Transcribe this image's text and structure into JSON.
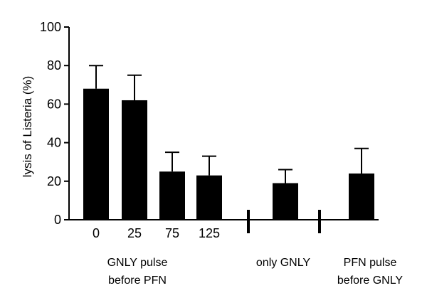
{
  "chart_data": {
    "type": "bar",
    "title": "",
    "ylabel": "lysis of Listeria (%)",
    "xlabel": "",
    "ylim": [
      0,
      100
    ],
    "yticks": [
      0,
      20,
      40,
      60,
      80,
      100
    ],
    "grid": false,
    "bar_color": "#000000",
    "categories": [
      "0",
      "25",
      "75",
      "125",
      "",
      ""
    ],
    "values": [
      68,
      62,
      25,
      23,
      19,
      24
    ],
    "error_upper": [
      80,
      75,
      35,
      33,
      26,
      37
    ],
    "groups": [
      {
        "line1": "GNLY pulse",
        "line2": "before PFN"
      },
      {
        "line1": "only GNLY",
        "line2": ""
      },
      {
        "line1": "PFN pulse",
        "line2": "before GNLY"
      }
    ]
  }
}
